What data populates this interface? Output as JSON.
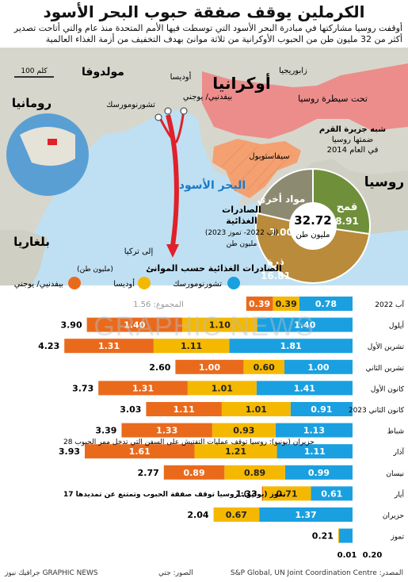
{
  "title": "الكرملين يوقف صفقة حبوب البحر الأسود",
  "subtitle_1": "أوقفت روسيا مشاركتها في مبادرة البحر الأسود التي توسطت فيها الأمم المتحدة منذ عام والتي أتاحت تصدير",
  "subtitle_2": "أكثر من 32 مليون طن من الحبوب الأوكرانية من ثلاثة موانئ بهدف التخفيف من أزمة الغذاء العالمية",
  "map": {
    "countries": {
      "ukraine": "أوكرانيا",
      "moldova": "مولدوفا",
      "romania": "رومانيا",
      "bulgaria": "بلغاريا",
      "russia": "روسيا"
    },
    "sea": "البحر الأسود",
    "ports": {
      "odesa": "أوديسا",
      "pivdennyi": "بيفدنيي/ يوجني",
      "chornomorsk": "تشورنومورسك"
    },
    "cities": {
      "zaporizhzhia": "زابوريجيا",
      "sevastopol": "سيفاستوبول"
    },
    "occupied": "تحت سيطرة روسيا",
    "crimea": [
      "شبه جزيرة القرم",
      "ضمتها روسيا",
      "في العام 2014"
    ],
    "to_turkey": "إلى تركيا",
    "scale": "100 كلم",
    "exports_label": [
      "الصادرات",
      "الغذائية",
      "(آب 2022- تموز 2023)",
      "مليون طن"
    ],
    "pie": {
      "total": "32.72",
      "unit": "مليون طن",
      "slices": [
        {
          "name": "قمح",
          "value": 8.91,
          "label": "8.91",
          "color": "#6f8f3a"
        },
        {
          "name": "ذرة",
          "value": 16.81,
          "label": "16.81",
          "color": "#b98b3a"
        },
        {
          "name": "مواد أخرى",
          "value": 7.0,
          "label": "7.00",
          "color": "#8d8a72"
        }
      ]
    },
    "colors": {
      "land": "#d6d6cc",
      "sea": "#bfe0f2",
      "occupied": "#f08080",
      "crimea": "#f4a070",
      "route": "#e0202a"
    }
  },
  "chart_data": {
    "type": "bar",
    "title": "الصادرات الغذائية حسب الموانئ",
    "unit_label": "(مليون طن)",
    "categories": [
      "آب 2022",
      "أيلول",
      "تشرين الأول",
      "تشرين الثاني",
      "كانون الأول",
      "كانون الثاني 2023",
      "شباط",
      "آذار",
      "نيسان",
      "أيار",
      "حزيران",
      "تموز"
    ],
    "series": [
      {
        "name": "تشورنومورسك",
        "color": "#1aa0e0",
        "values": [
          0.78,
          1.4,
          1.81,
          1.0,
          1.41,
          0.91,
          1.13,
          1.11,
          0.99,
          0.61,
          1.37,
          0.2
        ]
      },
      {
        "name": "أوديسا",
        "color": "#f5b800",
        "values": [
          0.39,
          1.1,
          1.11,
          0.6,
          1.01,
          1.01,
          0.93,
          1.21,
          0.89,
          0.71,
          0.67,
          0.01
        ]
      },
      {
        "name": "بيفدنيي/ يوجني",
        "color": "#ea6a1c",
        "values": [
          0.39,
          1.4,
          1.31,
          1.0,
          1.31,
          1.11,
          1.33,
          1.61,
          0.89,
          0.01,
          0,
          0
        ]
      }
    ],
    "value_labels": [
      [
        "0.78",
        "0.39",
        "0.39"
      ],
      [
        "1.40",
        "1.10",
        "1.40"
      ],
      [
        "1.81",
        "1.11",
        "1.31"
      ],
      [
        "1.00",
        "0.60",
        "1.00"
      ],
      [
        "1.41",
        "1.01",
        "1.31"
      ],
      [
        "0.91",
        "1.01",
        "1.11"
      ],
      [
        "1.13",
        "0.93",
        "1.33"
      ],
      [
        "1.11",
        "1.21",
        "1.61"
      ],
      [
        "0.99",
        "0.89",
        "0.89"
      ],
      [
        "0.61",
        "0.71",
        "0.01"
      ],
      [
        "1.37",
        "0.67",
        ""
      ],
      [
        "0.20",
        "0.01",
        ""
      ]
    ],
    "totals": [
      "",
      "3.90",
      "4.23",
      "2.60",
      "3.73",
      "3.03",
      "3.39",
      "3.93",
      "2.77",
      "1.33",
      "2.04",
      "0.21"
    ],
    "first_total": "المجموع: 1.56",
    "annotations": [
      "28 حزيران (يونيو): روسيا توقف عمليات التفتيش على السفن التي تدخل ممر الحبوب",
      "17 تموز (يوليو): روسيا توقف صفقة الحبوب وتمتنع عن تمديدها"
    ],
    "small_labels": [
      "0.01",
      "0.20"
    ]
  },
  "footer": {
    "source": "المصدر: S&P Global, UN Joint Coordination Centre",
    "photos": "الصور: جتي",
    "brand": "جرافيك نيوز GRAPHIC NEWS"
  },
  "watermark": "GRAPHIC NEWS"
}
